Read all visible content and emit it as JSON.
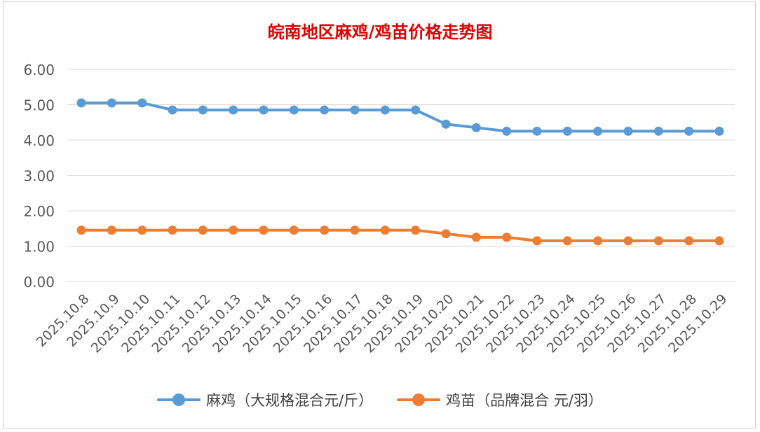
{
  "chart_data": {
    "type": "line",
    "title": "皖南地区麻鸡/鸡苗价格走势图",
    "categories": [
      "2025.10.8",
      "2025.10.9",
      "2025.10.10",
      "2025.10.11",
      "2025.10.12",
      "2025.10.13",
      "2025.10.14",
      "2025.10.15",
      "2025.10.16",
      "2025.10.17",
      "2025.10.18",
      "2025.10.19",
      "2025.10.20",
      "2025.10.21",
      "2025.10.22",
      "2025.10.23",
      "2025.10.24",
      "2025.10.25",
      "2025.10.26",
      "2025.10.27",
      "2025.10.28",
      "2025.10.29"
    ],
    "series": [
      {
        "name": "麻鸡（大规格混合元/斤）",
        "color": "#5b9bd5",
        "values": [
          5.05,
          5.05,
          5.05,
          4.85,
          4.85,
          4.85,
          4.85,
          4.85,
          4.85,
          4.85,
          4.85,
          4.85,
          4.45,
          4.35,
          4.25,
          4.25,
          4.25,
          4.25,
          4.25,
          4.25,
          4.25,
          4.25
        ]
      },
      {
        "name": "鸡苗（品牌混合 元/羽）",
        "color": "#ed7d31",
        "values": [
          1.45,
          1.45,
          1.45,
          1.45,
          1.45,
          1.45,
          1.45,
          1.45,
          1.45,
          1.45,
          1.45,
          1.45,
          1.35,
          1.25,
          1.25,
          1.15,
          1.15,
          1.15,
          1.15,
          1.15,
          1.15,
          1.15
        ]
      }
    ],
    "yticks": [
      "0.00",
      "1.00",
      "2.00",
      "3.00",
      "4.00",
      "5.00",
      "6.00"
    ],
    "ylim": [
      0,
      6
    ],
    "grid": true,
    "legend_position": "bottom",
    "title_color": "#e00000",
    "gridline_color": "#d9d9d9"
  }
}
